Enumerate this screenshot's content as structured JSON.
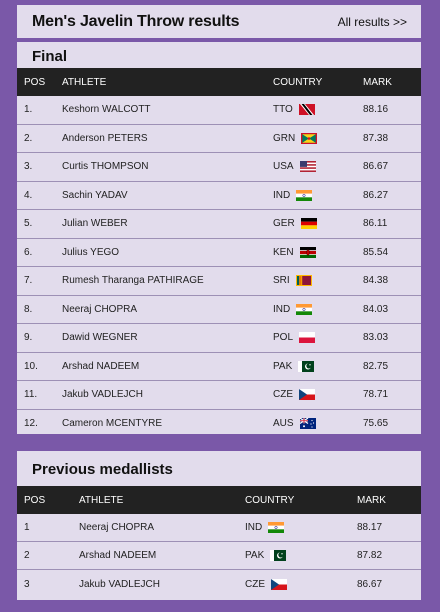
{
  "header": {
    "title": "Men's Javelin Throw results",
    "link": "All results >>"
  },
  "final": {
    "title": "Final",
    "columns": [
      "POS",
      "ATHLETE",
      "COUNTRY",
      "MARK"
    ],
    "rows": [
      {
        "pos": "1.",
        "athlete": "Keshorn WALCOTT",
        "country": "TTO",
        "flag": "flag-tto-icon",
        "mark": "88.16"
      },
      {
        "pos": "2.",
        "athlete": "Anderson PETERS",
        "country": "GRN",
        "flag": "flag-grn-icon",
        "mark": "87.38"
      },
      {
        "pos": "3.",
        "athlete": "Curtis THOMPSON",
        "country": "USA",
        "flag": "flag-usa-icon",
        "mark": "86.67"
      },
      {
        "pos": "4.",
        "athlete": "Sachin YADAV",
        "country": "IND",
        "flag": "flag-ind-icon",
        "mark": "86.27"
      },
      {
        "pos": "5.",
        "athlete": "Julian WEBER",
        "country": "GER",
        "flag": "flag-ger-icon",
        "mark": "86.11"
      },
      {
        "pos": "6.",
        "athlete": "Julius YEGO",
        "country": "KEN",
        "flag": "flag-ken-icon",
        "mark": "85.54"
      },
      {
        "pos": "7.",
        "athlete": "Rumesh Tharanga PATHIRAGE",
        "country": "SRI",
        "flag": "flag-sri-icon",
        "mark": "84.38"
      },
      {
        "pos": "8.",
        "athlete": "Neeraj CHOPRA",
        "country": "IND",
        "flag": "flag-ind-icon",
        "mark": "84.03"
      },
      {
        "pos": "9.",
        "athlete": "Dawid WEGNER",
        "country": "POL",
        "flag": "flag-pol-icon",
        "mark": "83.03"
      },
      {
        "pos": "10.",
        "athlete": "Arshad NADEEM",
        "country": "PAK",
        "flag": "flag-pak-icon",
        "mark": "82.75"
      },
      {
        "pos": "11.",
        "athlete": "Jakub VADLEJCH",
        "country": "CZE",
        "flag": "flag-cze-icon",
        "mark": "78.71"
      },
      {
        "pos": "12.",
        "athlete": "Cameron MCENTYRE",
        "country": "AUS",
        "flag": "flag-aus-icon",
        "mark": "75.65"
      }
    ]
  },
  "previous": {
    "title": "Previous medallists",
    "columns": [
      "POS",
      "ATHLETE",
      "COUNTRY",
      "MARK"
    ],
    "rows": [
      {
        "pos": "1",
        "athlete": "Neeraj CHOPRA",
        "country": "IND",
        "flag": "flag-ind-icon",
        "mark": "88.17"
      },
      {
        "pos": "2",
        "athlete": "Arshad NADEEM",
        "country": "PAK",
        "flag": "flag-pak-icon",
        "mark": "87.82"
      },
      {
        "pos": "3",
        "athlete": "Jakub VADLEJCH",
        "country": "CZE",
        "flag": "flag-cze-icon",
        "mark": "86.67"
      }
    ]
  },
  "colors": {
    "background": "#7a58a8",
    "card": "#e2dcec",
    "table_header": "#222222"
  }
}
